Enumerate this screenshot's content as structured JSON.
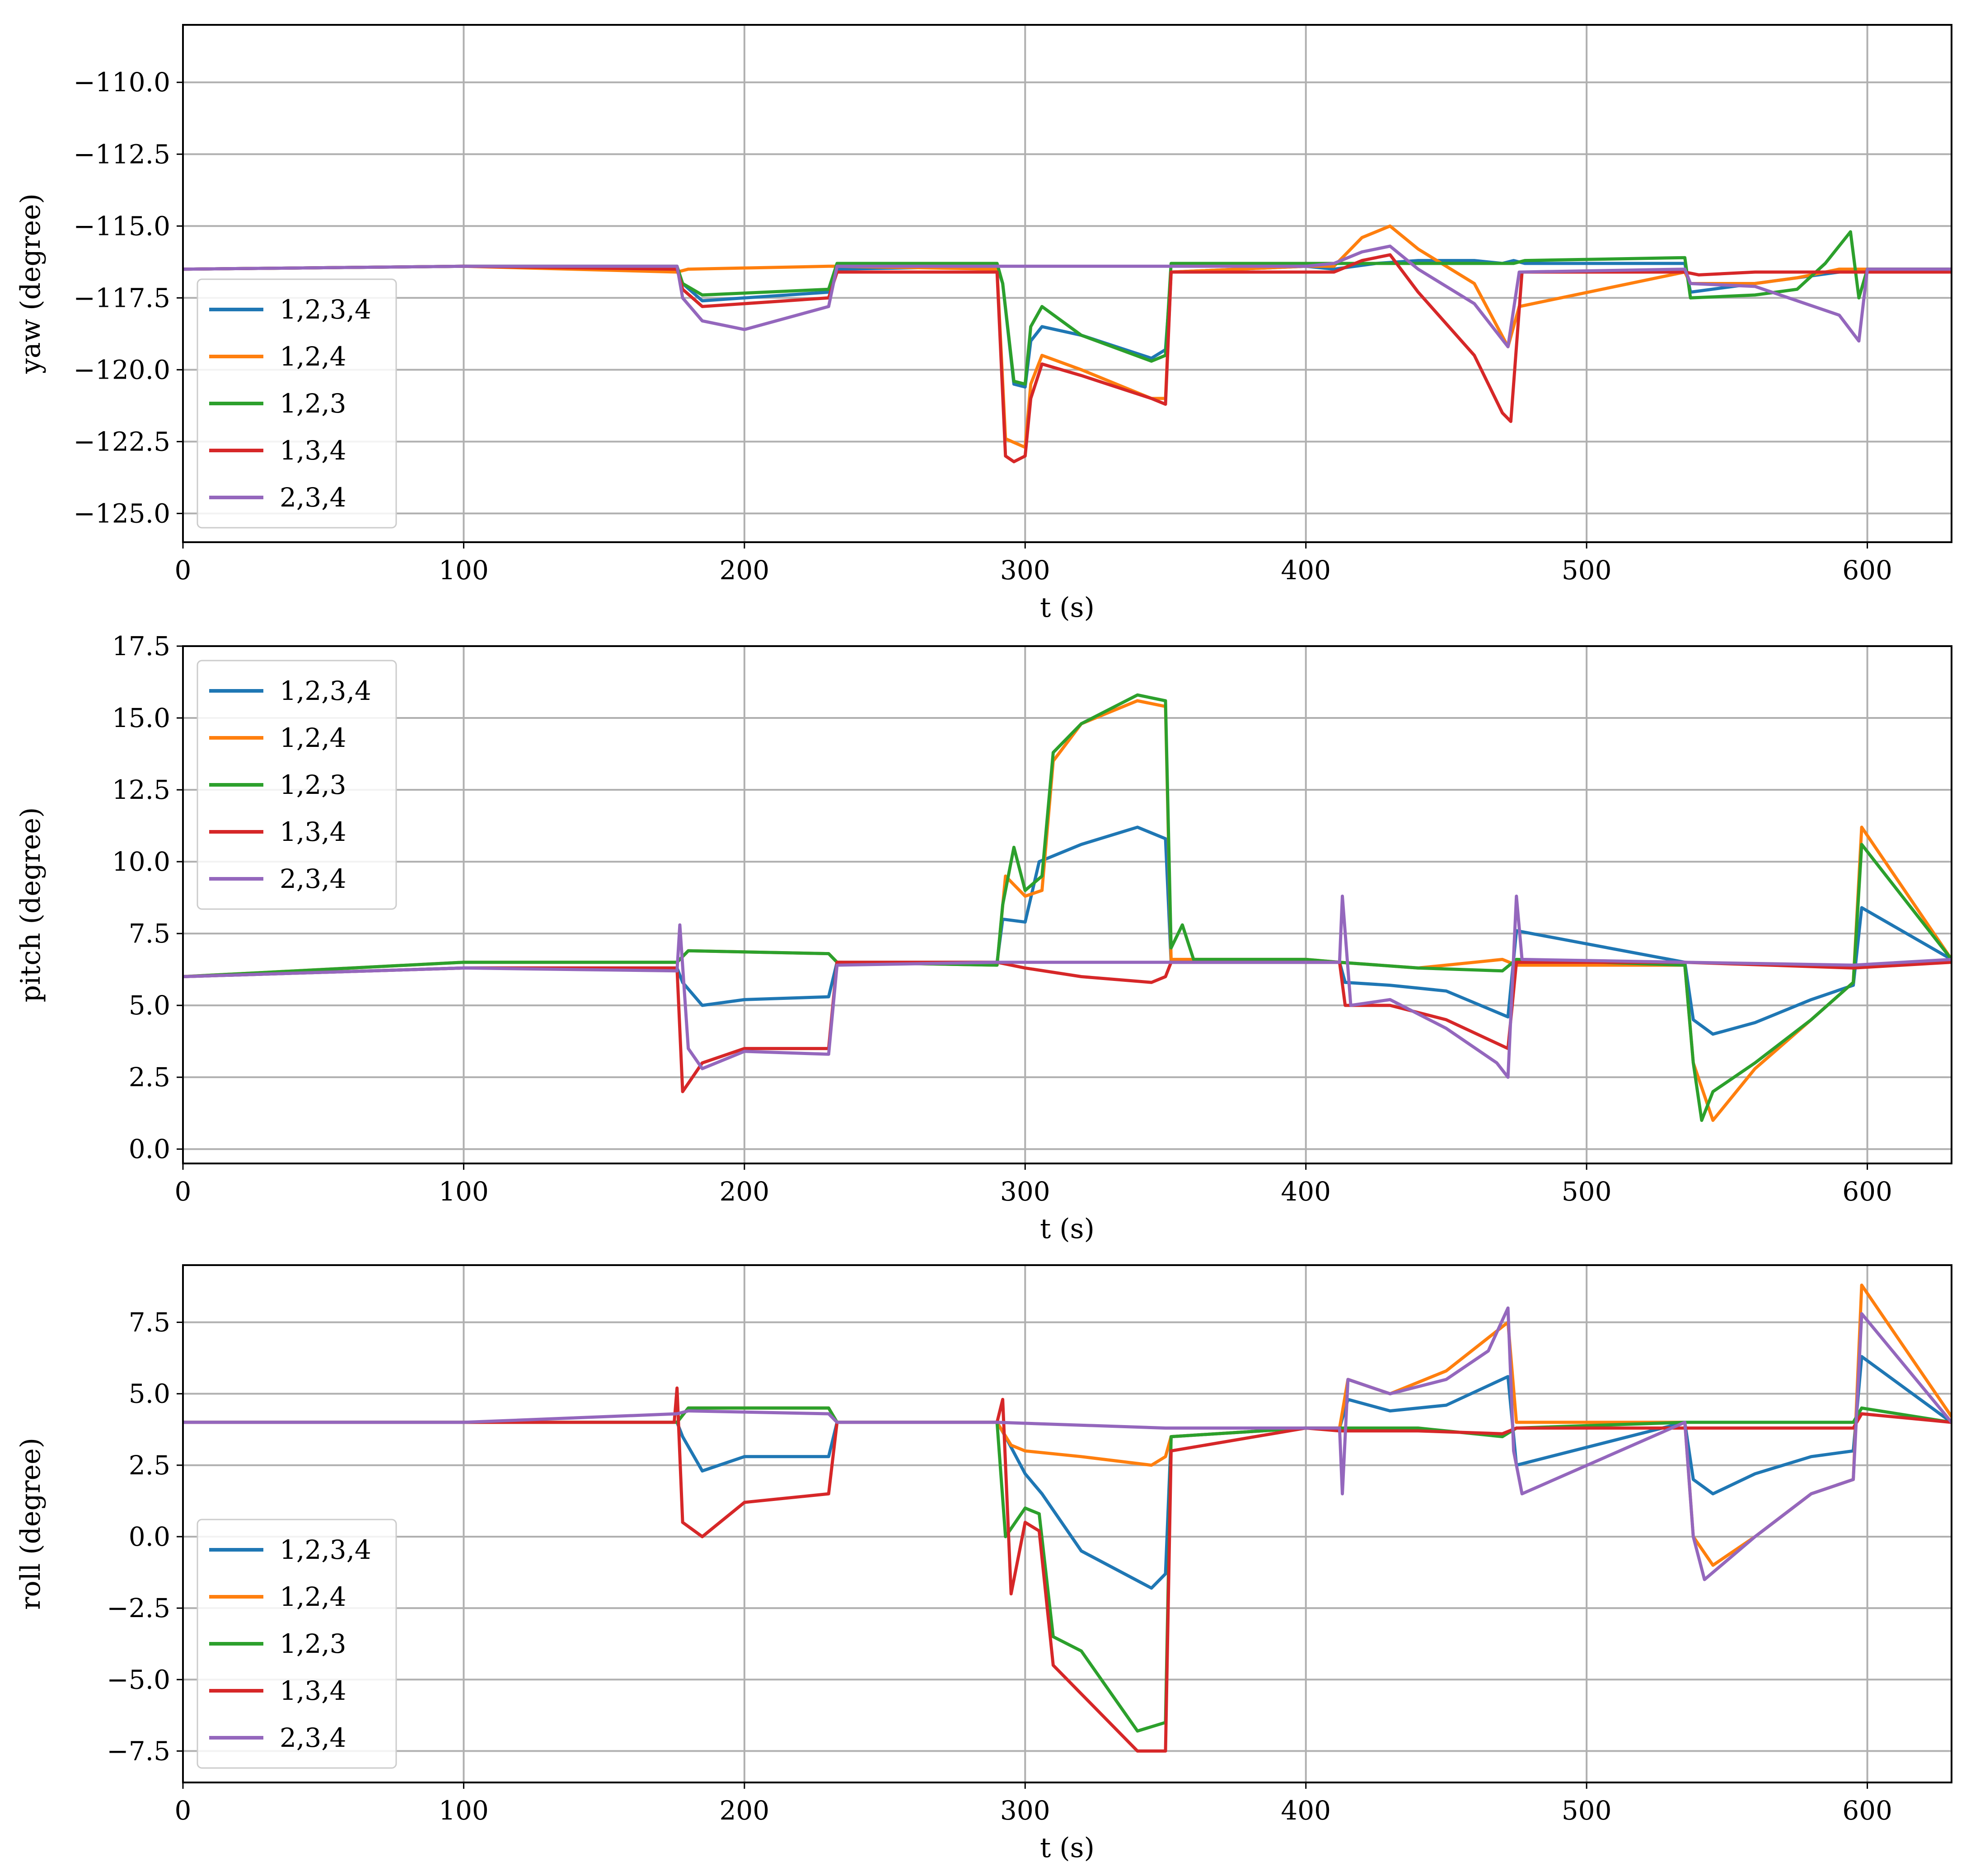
{
  "figure": {
    "title": ""
  },
  "colors": {
    "1,2,3,4": "#1f77b4",
    "1,2,4": "#ff7f0e",
    "1,2,3": "#2ca02c",
    "1,3,4": "#d62728",
    "2,3,4": "#9467bd",
    "grid": "#b0b0b0"
  },
  "chart_data": [
    {
      "type": "line",
      "title": "",
      "xlabel": "t (s)",
      "ylabel": "yaw (degree)",
      "xlim": [
        0,
        630
      ],
      "ylim": [
        -126,
        -108
      ],
      "xticks": [
        0,
        100,
        200,
        300,
        400,
        500,
        600
      ],
      "xtick_labels": [
        "0",
        "100",
        "200",
        "300",
        "400",
        "500",
        "600"
      ],
      "yticks": [
        -110,
        -112.5,
        -115,
        -117.5,
        -120,
        -122.5,
        -125
      ],
      "ytick_labels": [
        "−110.0",
        "−112.5",
        "−115.0",
        "−117.5",
        "−120.0",
        "−122.5",
        "−125.0"
      ],
      "grid": true,
      "legend": {
        "position": "lower-left",
        "entries": [
          "1,2,3,4",
          "1,2,4",
          "1,2,3",
          "1,3,4",
          "2,3,4"
        ]
      },
      "series": [
        {
          "name": "1,2,3,4",
          "x": [
            0,
            100,
            176,
            178,
            185,
            230,
            233,
            290,
            292,
            296,
            300,
            302,
            306,
            320,
            345,
            350,
            352,
            400,
            410,
            425,
            440,
            460,
            470,
            474,
            478,
            535,
            537,
            560,
            575,
            590,
            600,
            630
          ],
          "y": [
            -116.5,
            -116.4,
            -116.5,
            -117.0,
            -117.6,
            -117.3,
            -116.5,
            -116.4,
            -117.0,
            -120.5,
            -120.6,
            -119.0,
            -118.5,
            -118.8,
            -119.6,
            -119.3,
            -116.6,
            -116.4,
            -116.5,
            -116.3,
            -116.2,
            -116.2,
            -116.3,
            -116.2,
            -116.3,
            -116.3,
            -117.3,
            -117.0,
            -116.8,
            -116.6,
            -116.5,
            -116.5
          ]
        },
        {
          "name": "1,2,4",
          "x": [
            0,
            100,
            176,
            180,
            230,
            233,
            290,
            293,
            300,
            302,
            306,
            320,
            345,
            350,
            352,
            400,
            410,
            420,
            430,
            440,
            460,
            472,
            476,
            535,
            537,
            560,
            575,
            590,
            600,
            630
          ],
          "y": [
            -116.5,
            -116.4,
            -116.6,
            -116.5,
            -116.4,
            -116.4,
            -116.5,
            -122.4,
            -122.7,
            -120.5,
            -119.5,
            -120.0,
            -121.0,
            -121.0,
            -116.6,
            -116.4,
            -116.4,
            -115.4,
            -115.0,
            -115.8,
            -117.0,
            -119.2,
            -117.8,
            -116.6,
            -117.0,
            -117.0,
            -116.8,
            -116.5,
            -116.5,
            -116.5
          ]
        },
        {
          "name": "1,2,3",
          "x": [
            0,
            100,
            176,
            178,
            185,
            230,
            233,
            290,
            292,
            296,
            300,
            302,
            306,
            320,
            345,
            350,
            352,
            400,
            410,
            420,
            440,
            460,
            470,
            474,
            478,
            535,
            537,
            560,
            575,
            585,
            594,
            597,
            600,
            630
          ],
          "y": [
            -116.5,
            -116.4,
            -116.4,
            -117.0,
            -117.4,
            -117.2,
            -116.3,
            -116.3,
            -117.0,
            -120.4,
            -120.5,
            -118.5,
            -117.8,
            -118.8,
            -119.7,
            -119.5,
            -116.3,
            -116.3,
            -116.3,
            -116.3,
            -116.3,
            -116.3,
            -116.3,
            -116.3,
            -116.2,
            -116.1,
            -117.5,
            -117.4,
            -117.2,
            -116.3,
            -115.2,
            -117.5,
            -116.5,
            -116.5
          ]
        },
        {
          "name": "1,3,4",
          "x": [
            0,
            100,
            176,
            178,
            185,
            230,
            233,
            290,
            293,
            296,
            300,
            302,
            306,
            320,
            345,
            350,
            352,
            400,
            410,
            420,
            430,
            440,
            460,
            470,
            473,
            477,
            535,
            540,
            560,
            575,
            590,
            600,
            630
          ],
          "y": [
            -116.5,
            -116.4,
            -116.5,
            -117.2,
            -117.8,
            -117.5,
            -116.6,
            -116.6,
            -123.0,
            -123.2,
            -123.0,
            -121.0,
            -119.8,
            -120.2,
            -121.0,
            -121.2,
            -116.6,
            -116.6,
            -116.6,
            -116.2,
            -116.0,
            -117.3,
            -119.5,
            -121.5,
            -121.8,
            -116.6,
            -116.6,
            -116.7,
            -116.6,
            -116.6,
            -116.6,
            -116.6,
            -116.6
          ]
        },
        {
          "name": "2,3,4",
          "x": [
            0,
            100,
            176,
            178,
            185,
            200,
            230,
            233,
            290,
            350,
            400,
            410,
            420,
            430,
            440,
            460,
            472,
            476,
            535,
            537,
            560,
            575,
            590,
            597,
            600,
            630
          ],
          "y": [
            -116.5,
            -116.4,
            -116.4,
            -117.5,
            -118.3,
            -118.6,
            -117.8,
            -116.4,
            -116.4,
            -116.4,
            -116.4,
            -116.3,
            -115.9,
            -115.7,
            -116.5,
            -117.7,
            -119.2,
            -116.6,
            -116.5,
            -117.0,
            -117.1,
            -117.6,
            -118.1,
            -119.0,
            -116.5,
            -116.5
          ]
        }
      ]
    },
    {
      "type": "line",
      "title": "",
      "xlabel": "t (s)",
      "ylabel": "pitch (degree)",
      "xlim": [
        0,
        630
      ],
      "ylim": [
        -0.5,
        17.5
      ],
      "xticks": [
        0,
        100,
        200,
        300,
        400,
        500,
        600
      ],
      "xtick_labels": [
        "0",
        "100",
        "200",
        "300",
        "400",
        "500",
        "600"
      ],
      "yticks": [
        0,
        2.5,
        5,
        7.5,
        10,
        12.5,
        15,
        17.5
      ],
      "ytick_labels": [
        "0.0",
        "2.5",
        "5.0",
        "7.5",
        "10.0",
        "12.5",
        "15.0",
        "17.5"
      ],
      "grid": true,
      "legend": {
        "position": "upper-left",
        "entries": [
          "1,2,3,4",
          "1,2,4",
          "1,2,3",
          "1,3,4",
          "2,3,4"
        ]
      },
      "series": [
        {
          "name": "1,2,3,4",
          "x": [
            0,
            100,
            176,
            178,
            185,
            200,
            230,
            233,
            290,
            292,
            300,
            305,
            320,
            340,
            350,
            352,
            400,
            412,
            414,
            430,
            450,
            472,
            475,
            535,
            538,
            545,
            560,
            580,
            595,
            598,
            630
          ],
          "y": [
            6.0,
            6.3,
            6.3,
            5.8,
            5.0,
            5.2,
            5.3,
            6.5,
            6.5,
            8.0,
            7.9,
            10.0,
            10.6,
            11.2,
            10.8,
            6.5,
            6.5,
            6.5,
            5.8,
            5.7,
            5.5,
            4.6,
            7.6,
            6.5,
            4.5,
            4.0,
            4.4,
            5.2,
            5.7,
            8.4,
            6.6
          ]
        },
        {
          "name": "1,2,4",
          "x": [
            0,
            100,
            176,
            180,
            230,
            233,
            290,
            293,
            300,
            306,
            310,
            320,
            340,
            350,
            352,
            400,
            412,
            440,
            470,
            475,
            535,
            538,
            545,
            560,
            580,
            595,
            598,
            630
          ],
          "y": [
            6.0,
            6.5,
            6.5,
            6.9,
            6.8,
            6.5,
            6.4,
            9.5,
            8.8,
            9.0,
            13.5,
            14.8,
            15.6,
            15.4,
            6.6,
            6.6,
            6.5,
            6.3,
            6.6,
            6.4,
            6.4,
            3.0,
            1.0,
            2.8,
            4.5,
            5.8,
            11.2,
            6.6
          ]
        },
        {
          "name": "1,2,3",
          "x": [
            0,
            100,
            176,
            180,
            230,
            233,
            290,
            292,
            296,
            300,
            306,
            310,
            320,
            340,
            350,
            352,
            356,
            360,
            400,
            412,
            440,
            470,
            475,
            535,
            538,
            541,
            545,
            560,
            580,
            595,
            598,
            630
          ],
          "y": [
            6.0,
            6.5,
            6.5,
            6.9,
            6.8,
            6.5,
            6.4,
            8.5,
            10.5,
            9.0,
            9.5,
            13.8,
            14.8,
            15.8,
            15.6,
            7.0,
            7.8,
            6.6,
            6.6,
            6.5,
            6.3,
            6.2,
            6.6,
            6.4,
            3.0,
            1.0,
            2.0,
            3.0,
            4.5,
            5.8,
            10.6,
            6.6
          ]
        },
        {
          "name": "1,3,4",
          "x": [
            0,
            100,
            176,
            178,
            185,
            200,
            230,
            233,
            290,
            300,
            320,
            345,
            350,
            352,
            400,
            412,
            414,
            430,
            450,
            472,
            475,
            535,
            595,
            630
          ],
          "y": [
            6.0,
            6.3,
            6.3,
            2.0,
            3.0,
            3.5,
            3.5,
            6.5,
            6.5,
            6.3,
            6.0,
            5.8,
            6.0,
            6.5,
            6.5,
            6.5,
            5.0,
            5.0,
            4.5,
            3.5,
            6.5,
            6.5,
            6.3,
            6.5
          ]
        },
        {
          "name": "2,3,4",
          "x": [
            0,
            100,
            176,
            177,
            180,
            185,
            200,
            230,
            233,
            290,
            350,
            400,
            412,
            413,
            416,
            430,
            450,
            468,
            472,
            475,
            477,
            535,
            595,
            630
          ],
          "y": [
            6.0,
            6.3,
            6.2,
            7.8,
            3.5,
            2.8,
            3.4,
            3.3,
            6.4,
            6.5,
            6.5,
            6.5,
            6.5,
            8.8,
            5.0,
            5.2,
            4.2,
            3.0,
            2.5,
            8.8,
            6.6,
            6.5,
            6.4,
            6.6
          ]
        }
      ]
    },
    {
      "type": "line",
      "title": "",
      "xlabel": "t (s)",
      "ylabel": "roll (degree)",
      "xlim": [
        0,
        630
      ],
      "ylim": [
        -8.6,
        9.5
      ],
      "xticks": [
        0,
        100,
        200,
        300,
        400,
        500,
        600
      ],
      "xtick_labels": [
        "0",
        "100",
        "200",
        "300",
        "400",
        "500",
        "600"
      ],
      "yticks": [
        7.5,
        5,
        2.5,
        0,
        -2.5,
        -5,
        -7.5
      ],
      "ytick_labels": [
        "7.5",
        "5.0",
        "2.5",
        "0.0",
        "−2.5",
        "−5.0",
        "−7.5"
      ],
      "grid": true,
      "legend": {
        "position": "lower-left",
        "entries": [
          "1,2,3,4",
          "1,2,4",
          "1,2,3",
          "1,3,4",
          "2,3,4"
        ]
      },
      "series": [
        {
          "name": "1,2,3,4",
          "x": [
            0,
            100,
            176,
            178,
            185,
            200,
            230,
            233,
            290,
            293,
            300,
            306,
            320,
            345,
            350,
            352,
            400,
            412,
            415,
            430,
            450,
            472,
            475,
            535,
            538,
            545,
            560,
            580,
            595,
            598,
            630
          ],
          "y": [
            4.0,
            4.0,
            4.0,
            3.5,
            2.3,
            2.8,
            2.8,
            4.0,
            4.0,
            3.5,
            2.2,
            1.5,
            -0.5,
            -1.8,
            -1.3,
            3.5,
            3.8,
            3.8,
            4.8,
            4.4,
            4.6,
            5.6,
            2.5,
            4.0,
            2.0,
            1.5,
            2.2,
            2.8,
            3.0,
            6.3,
            4.0
          ]
        },
        {
          "name": "1,2,4",
          "x": [
            0,
            100,
            176,
            180,
            230,
            233,
            290,
            295,
            300,
            320,
            345,
            350,
            352,
            400,
            412,
            415,
            430,
            450,
            472,
            475,
            535,
            538,
            545,
            560,
            580,
            595,
            598,
            630
          ],
          "y": [
            4.0,
            4.0,
            4.0,
            4.5,
            4.5,
            4.0,
            4.0,
            3.2,
            3.0,
            2.8,
            2.5,
            2.8,
            3.5,
            3.8,
            3.8,
            5.5,
            5.0,
            5.8,
            7.5,
            4.0,
            4.0,
            0.0,
            -1.0,
            0.0,
            1.5,
            2.0,
            8.8,
            4.2
          ]
        },
        {
          "name": "1,2,3",
          "x": [
            0,
            100,
            176,
            180,
            230,
            233,
            290,
            293,
            300,
            305,
            310,
            320,
            340,
            350,
            352,
            400,
            412,
            440,
            470,
            475,
            535,
            595,
            598,
            630
          ],
          "y": [
            4.0,
            4.0,
            4.0,
            4.5,
            4.5,
            4.0,
            4.0,
            0.0,
            1.0,
            0.8,
            -3.5,
            -4.0,
            -6.8,
            -6.5,
            3.5,
            3.8,
            3.8,
            3.8,
            3.5,
            3.8,
            4.0,
            4.0,
            4.5,
            4.0
          ]
        },
        {
          "name": "1,3,4",
          "x": [
            0,
            100,
            175,
            176,
            178,
            185,
            200,
            230,
            233,
            290,
            292,
            295,
            300,
            305,
            310,
            320,
            340,
            350,
            352,
            400,
            412,
            440,
            470,
            475,
            535,
            595,
            598,
            630
          ],
          "y": [
            4.0,
            4.0,
            4.0,
            5.2,
            0.5,
            0.0,
            1.2,
            1.5,
            4.0,
            4.0,
            4.8,
            -2.0,
            0.5,
            0.2,
            -4.5,
            -5.5,
            -7.5,
            -7.5,
            3.0,
            3.8,
            3.7,
            3.7,
            3.6,
            3.8,
            3.8,
            3.8,
            4.3,
            4.0
          ]
        },
        {
          "name": "2,3,4",
          "x": [
            0,
            100,
            176,
            180,
            230,
            233,
            290,
            350,
            400,
            412,
            413,
            415,
            430,
            450,
            465,
            472,
            474,
            477,
            535,
            538,
            542,
            560,
            580,
            595,
            598,
            630
          ],
          "y": [
            4.0,
            4.0,
            4.3,
            4.4,
            4.3,
            4.0,
            4.0,
            3.8,
            3.8,
            3.8,
            1.5,
            5.5,
            5.0,
            5.5,
            6.5,
            8.0,
            3.0,
            1.5,
            4.0,
            0.0,
            -1.5,
            0.0,
            1.5,
            2.0,
            7.8,
            4.0
          ]
        }
      ]
    }
  ]
}
